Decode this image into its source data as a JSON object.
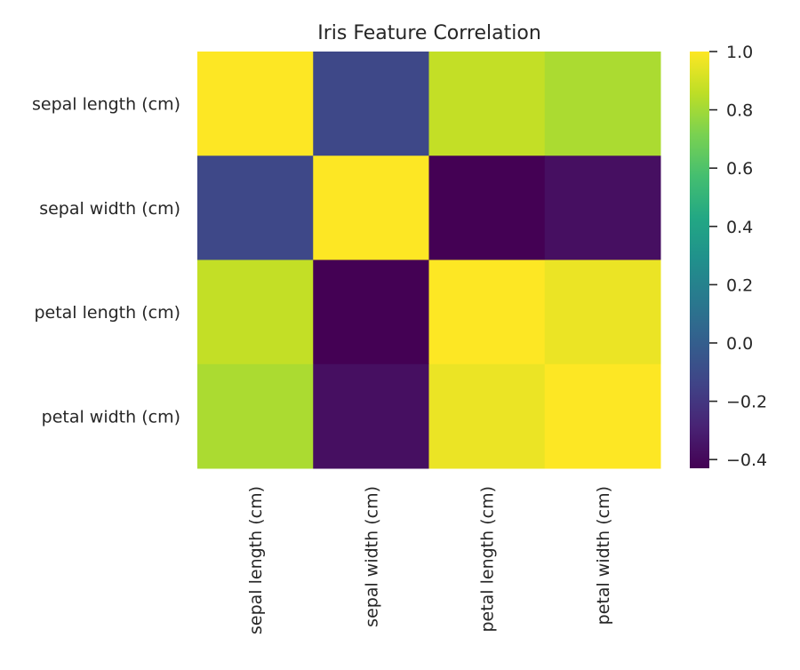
{
  "chart_data": {
    "type": "heatmap",
    "title": "Iris Feature Correlation",
    "xlabel": "",
    "ylabel": "",
    "x_categories": [
      "sepal length (cm)",
      "sepal width (cm)",
      "petal length (cm)",
      "petal width (cm)"
    ],
    "y_categories": [
      "sepal length (cm)",
      "sepal width (cm)",
      "petal length (cm)",
      "petal width (cm)"
    ],
    "values": [
      [
        1.0,
        -0.12,
        0.87,
        0.82
      ],
      [
        -0.12,
        1.0,
        -0.43,
        -0.37
      ],
      [
        0.87,
        -0.43,
        1.0,
        0.96
      ],
      [
        0.82,
        -0.37,
        0.96,
        1.0
      ]
    ],
    "colormap": "viridis",
    "vmin": -0.43,
    "vmax": 1.0,
    "colorbar_ticks": [
      {
        "value": 1.0,
        "label": "1.0"
      },
      {
        "value": 0.8,
        "label": "0.8"
      },
      {
        "value": 0.6,
        "label": "0.6"
      },
      {
        "value": 0.4,
        "label": "0.4"
      },
      {
        "value": 0.2,
        "label": "0.2"
      },
      {
        "value": 0.0,
        "label": "0.0"
      },
      {
        "value": -0.2,
        "label": "−0.2"
      },
      {
        "value": -0.4,
        "label": "−0.4"
      }
    ],
    "grid": false,
    "legend": "colorbar-right"
  }
}
